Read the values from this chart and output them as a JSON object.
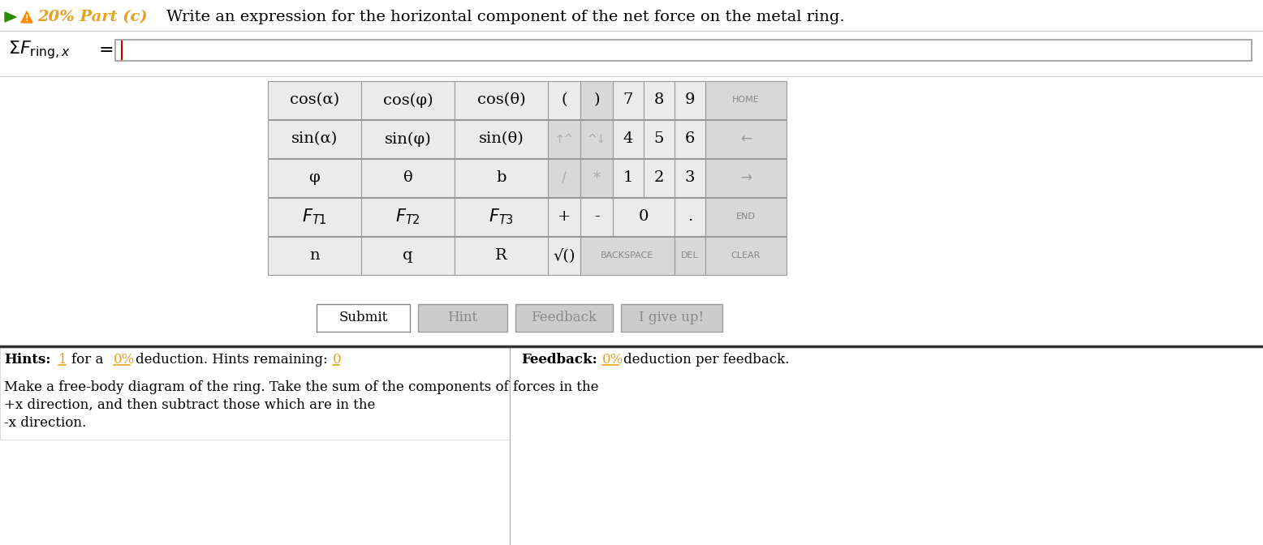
{
  "bg": "#ffffff",
  "orange": "#e8a020",
  "green": "#2e8b00",
  "gray_cell": "#e0e0e0",
  "white_cell": "#ebebeb",
  "border": "#999999",
  "dark_border": "#333333",
  "title_main": "Write an expression for the horizontal component of the net force on the metal ring.",
  "title_part": "20% Part (c)",
  "sum_expr": "ΣF",
  "sum_sub": "ring,x",
  "hints_bold": "Hints:",
  "hints_1": "1",
  "hints_mid": "for a",
  "hints_0pct": "0%",
  "hints_rem": "deduction. Hints remaining:",
  "hints_n": "0",
  "fb_bold": "Feedback:",
  "fb_0pct": "0%",
  "fb_rest": "deduction per feedback.",
  "hint_line1": "Make a free-body diagram of the ring. Take the sum of the components of forces in the",
  "hint_line2": "+x direction, and then subtract those which are in the",
  "hint_line3": "-x direction."
}
